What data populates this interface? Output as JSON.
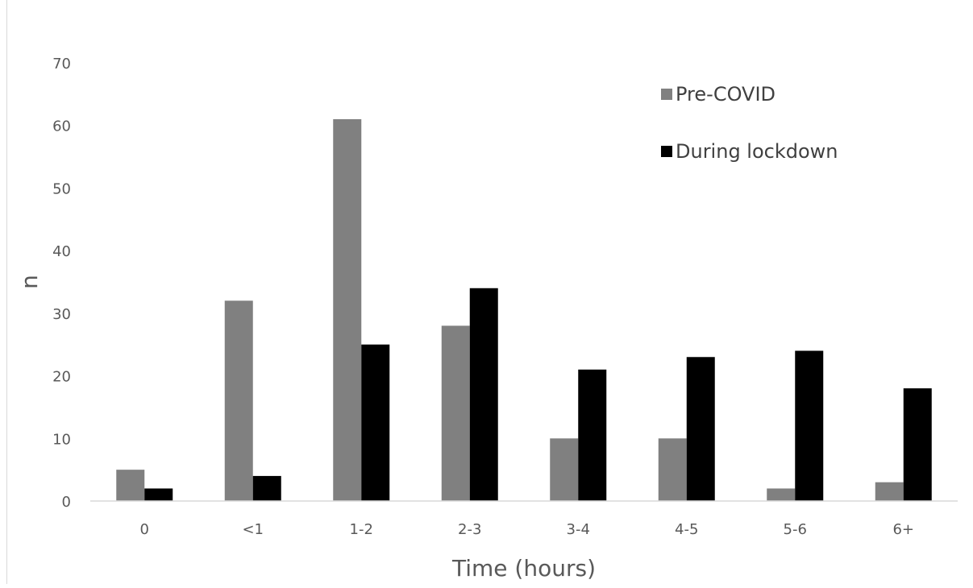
{
  "chart_data": {
    "type": "bar",
    "title": "",
    "xlabel": "Time (hours)",
    "ylabel": "n",
    "categories": [
      "0",
      "<1",
      "1-2",
      "2-3",
      "3-4",
      "4-5",
      "5-6",
      "6+"
    ],
    "ylim": [
      0,
      70
    ],
    "yticks": [
      "0",
      "10",
      "20",
      "30",
      "40",
      "50",
      "60",
      "70"
    ],
    "grid": false,
    "legend_position": "top-right",
    "series": [
      {
        "name": "Pre-COVID",
        "color": "#808080",
        "values": [
          5,
          32,
          61,
          28,
          10,
          10,
          2,
          3
        ]
      },
      {
        "name": "During lockdown",
        "color": "#000000",
        "values": [
          2,
          4,
          25,
          34,
          21,
          23,
          24,
          18
        ]
      }
    ]
  }
}
